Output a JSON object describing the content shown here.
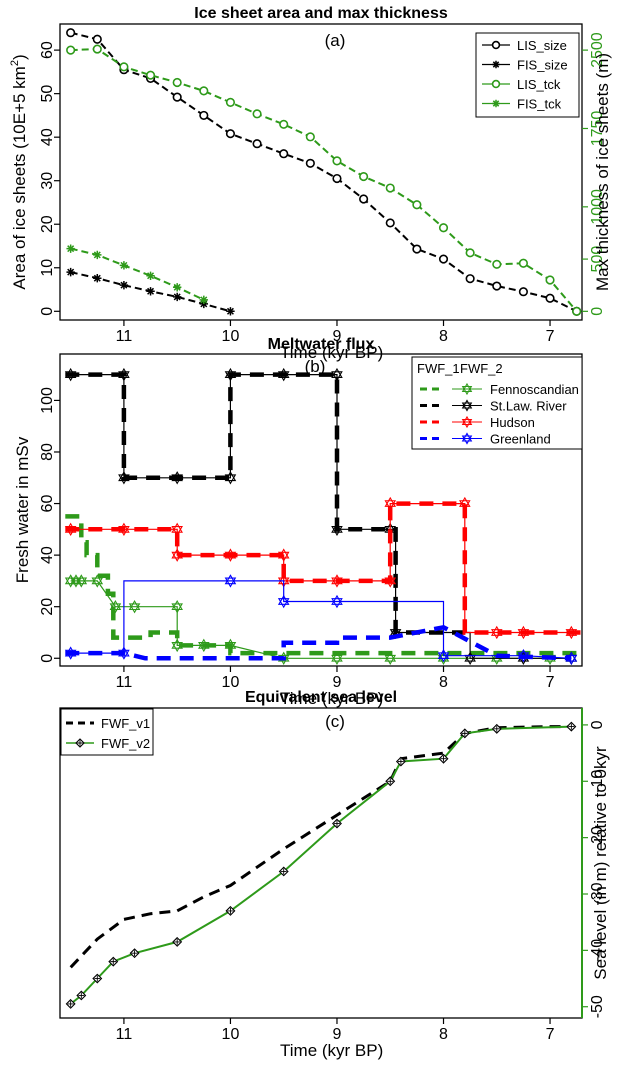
{
  "chart_data": [
    {
      "type": "line",
      "title": "Ice sheet area and max thickness",
      "panel_label": "(a)",
      "xlabel": "Time (kyr BP)",
      "ylabel": "Area of ice sheets (10E+5 km",
      "ylabel_sup": "2",
      "ylabel_close": ")",
      "y2label": "Max thickness of ice sheets (m)",
      "xlim": [
        11.6,
        6.7
      ],
      "ylim": [
        -2,
        66
      ],
      "y2lim": [
        -83,
        2750
      ],
      "xticks": [
        11,
        10,
        9,
        8,
        7
      ],
      "yticks": [
        0,
        10,
        20,
        30,
        40,
        50,
        60
      ],
      "y2ticks": [
        0,
        500,
        1000,
        1750,
        2500
      ],
      "grid": false,
      "legend_position": "top-right",
      "colors": {
        "size": "#000000",
        "tck": "#2e9a1a"
      },
      "series": [
        {
          "name": "LIS_size",
          "axis": "left",
          "marker": "circle",
          "color": "#000000",
          "x": [
            11.5,
            11.25,
            11.0,
            10.75,
            10.5,
            10.25,
            10.0,
            9.75,
            9.5,
            9.25,
            9.0,
            8.75,
            8.5,
            8.25,
            8.0,
            7.75,
            7.5,
            7.25,
            7.0,
            6.75
          ],
          "y": [
            64,
            62.5,
            55.5,
            53.5,
            49.2,
            45,
            40.8,
            38.5,
            36.2,
            34,
            30.5,
            25.8,
            20.3,
            14.3,
            12,
            7.5,
            5.8,
            4.5,
            3,
            0
          ]
        },
        {
          "name": "FIS_size",
          "axis": "left",
          "marker": "star",
          "color": "#000000",
          "x": [
            11.5,
            11.25,
            11.0,
            10.75,
            10.5,
            10.25,
            10.0
          ],
          "y": [
            9,
            7.6,
            6,
            4.6,
            3.3,
            1.7,
            0
          ]
        },
        {
          "name": "LIS_tck",
          "axis": "right",
          "marker": "circle",
          "color": "#2e9a1a",
          "x": [
            11.5,
            11.25,
            11.0,
            10.75,
            10.5,
            10.25,
            10.0,
            9.75,
            9.5,
            9.25,
            9.0,
            8.75,
            8.5,
            8.25,
            8.0,
            7.75,
            7.5,
            7.25,
            7.0,
            6.75
          ],
          "y": [
            2500,
            2510,
            2340,
            2260,
            2190,
            2110,
            2000,
            1890,
            1790,
            1670,
            1440,
            1290,
            1180,
            1020,
            800,
            560,
            450,
            460,
            300,
            0
          ]
        },
        {
          "name": "FIS_tck",
          "axis": "right",
          "marker": "star",
          "color": "#2e9a1a",
          "x": [
            11.5,
            11.25,
            11.0,
            10.75,
            10.5,
            10.25
          ],
          "y": [
            600,
            540,
            440,
            340,
            230,
            110
          ]
        }
      ]
    },
    {
      "type": "line",
      "title": "Meltwater flux",
      "panel_label": "(b)",
      "xlabel": "Time (kyr BP)",
      "ylabel": "Fresh water in mSv",
      "xlim": [
        11.6,
        6.7
      ],
      "ylim": [
        -3,
        118
      ],
      "xticks": [
        11,
        10,
        9,
        8,
        7
      ],
      "yticks": [
        0,
        20,
        40,
        60,
        80,
        100
      ],
      "grid": false,
      "legend_position": "top-right",
      "legend_header": [
        "FWF_1",
        "FWF_2"
      ],
      "series": [
        {
          "name": "Fennoscandian",
          "color": "#2e9a1a",
          "fwf1": {
            "x": [
              11.55,
              11.4,
              11.4,
              11.35,
              11.35,
              11.25,
              11.25,
              11.15,
              11.15,
              11.1,
              11.1,
              10.75,
              10.75,
              10.5,
              10.5,
              10.0,
              10.0,
              6.7
            ],
            "y": [
              55,
              55,
              45,
              45,
              40,
              40,
              32,
              32,
              25,
              25,
              8,
              8,
              10,
              10,
              5,
              5,
              2,
              2
            ]
          },
          "fwf2": {
            "x": [
              11.5,
              11.45,
              11.4,
              11.25,
              11.25,
              11.08,
              10.9,
              10.5,
              10.5,
              10.25,
              10.0,
              9.5,
              9.0,
              8.5,
              8.0,
              7.5,
              7.0,
              6.8
            ],
            "y": [
              30,
              30,
              30,
              30,
              30,
              20,
              20,
              20,
              5,
              5,
              5,
              0,
              0,
              0,
              0,
              0,
              0,
              0
            ],
            "marker_x": [
              11.5,
              11.45,
              11.4,
              11.25,
              11.08,
              10.9,
              10.5,
              10.5,
              10.25,
              10.0,
              9.5,
              9.0,
              8.5,
              8.0,
              7.5,
              7.0,
              6.8
            ],
            "marker_y": [
              30,
              30,
              30,
              30,
              20,
              20,
              20,
              5,
              5,
              5,
              0,
              0,
              0,
              0,
              0,
              0,
              0
            ]
          }
        },
        {
          "name": "St.Law. River",
          "color": "#000000",
          "fwf1": {
            "x": [
              11.55,
              11.0,
              11.0,
              10.0,
              10.0,
              9.0,
              9.0,
              8.45,
              8.45,
              8.0,
              8.0,
              7.8
            ],
            "y": [
              110,
              110,
              70,
              70,
              110,
              110,
              50,
              50,
              10,
              10,
              10,
              10
            ]
          },
          "fwf2": {
            "x": [
              11.5,
              11.25,
              11.0,
              11.0,
              10.5,
              10.0,
              10.0,
              9.5,
              9.25,
              9.0,
              9.0,
              8.5,
              8.45,
              8.45,
              7.75,
              7.75,
              6.8
            ],
            "y": [
              110,
              110,
              110,
              70,
              70,
              70,
              110,
              110,
              110,
              110,
              50,
              50,
              50,
              10,
              10,
              0,
              0
            ],
            "marker_x": [
              11.5,
              11.0,
              11.0,
              10.5,
              10.0,
              10.0,
              9.5,
              9.0,
              9.0,
              8.5,
              8.45,
              7.75,
              7.25,
              6.8
            ],
            "marker_y": [
              110,
              110,
              70,
              70,
              70,
              110,
              110,
              110,
              50,
              50,
              10,
              0,
              0,
              0
            ]
          }
        },
        {
          "name": "Hudson",
          "color": "#ff0000",
          "fwf1": {
            "x": [
              11.55,
              10.5,
              10.5,
              9.5,
              9.5,
              8.5,
              8.5,
              7.8,
              7.8,
              6.7
            ],
            "y": [
              50,
              50,
              40,
              40,
              30,
              30,
              60,
              60,
              10,
              10
            ]
          },
          "fwf2": {
            "x": [
              11.5,
              11.25,
              11.0,
              10.75,
              10.5,
              10.5,
              10.25,
              10.0,
              9.5,
              9.5,
              9.25,
              9.0,
              8.75,
              8.5,
              8.5,
              7.8,
              7.8,
              7.5,
              7.25,
              7.0,
              6.8
            ],
            "y": [
              50,
              50,
              50,
              50,
              50,
              40,
              40,
              40,
              40,
              30,
              30,
              30,
              30,
              30,
              60,
              60,
              10,
              10,
              10,
              10,
              10
            ],
            "marker_x": [
              11.5,
              11.0,
              10.5,
              10.5,
              10.0,
              9.5,
              9.5,
              9.0,
              8.5,
              8.5,
              7.8,
              7.5,
              7.25,
              6.8
            ],
            "marker_y": [
              50,
              50,
              50,
              40,
              40,
              40,
              30,
              30,
              30,
              60,
              60,
              10,
              10,
              10
            ]
          }
        },
        {
          "name": "Greenland",
          "color": "#0000ff",
          "fwf1": {
            "x": [
              11.55,
              11.0,
              10.8,
              10.25,
              10.0,
              9.5,
              9.5,
              9.0,
              9.0,
              8.5,
              8.0,
              7.5,
              6.8
            ],
            "y": [
              2,
              2,
              0,
              0,
              0,
              0,
              6,
              6,
              8,
              8,
              12,
              1,
              0
            ]
          },
          "fwf2": {
            "x": [
              11.5,
              11.0,
              11.0,
              10.0,
              9.5,
              9.5,
              8.0,
              8.0,
              7.25,
              6.8
            ],
            "y": [
              2,
              2,
              30,
              30,
              30,
              22,
              22,
              1,
              1,
              0
            ],
            "marker_x": [
              11.5,
              11.0,
              10.0,
              9.5,
              9.0,
              8.0,
              7.25,
              6.8
            ],
            "marker_y": [
              2,
              2,
              30,
              22,
              22,
              1,
              1,
              0
            ]
          }
        }
      ]
    },
    {
      "type": "line",
      "title": "Equivalent sea level",
      "panel_label": "(c)",
      "xlabel": "Time (kyr BP)",
      "y2label": "Sea level (in m) relative to 0kyr",
      "xlim": [
        11.6,
        6.7
      ],
      "ylim": [
        -52,
        3
      ],
      "xticks": [
        11,
        10,
        9,
        8,
        7
      ],
      "y2ticks": [
        0,
        -10,
        -20,
        -30,
        -40,
        -50
      ],
      "grid": false,
      "legend_position": "top-left",
      "series": [
        {
          "name": "FWF_v1",
          "color": "#000000",
          "style": "dashed",
          "x": [
            11.5,
            11.25,
            11.0,
            10.75,
            10.5,
            10.25,
            10.0,
            9.5,
            9.0,
            8.5,
            8.4,
            8.0,
            7.8,
            7.5,
            7.0,
            6.8
          ],
          "y": [
            -43,
            -38,
            -34.5,
            -33.5,
            -33,
            -30.5,
            -28.5,
            -22,
            -16,
            -10,
            -6,
            -5,
            -1.5,
            -0.5,
            -0.3,
            -0.3
          ]
        },
        {
          "name": "FWF_v2",
          "color": "#2e9a1a",
          "marker": "diamond",
          "x": [
            11.5,
            11.4,
            11.25,
            11.1,
            10.9,
            10.5,
            10.0,
            9.5,
            9.0,
            8.5,
            8.4,
            8.0,
            7.8,
            7.5,
            6.8
          ],
          "y": [
            -49.5,
            -48,
            -45,
            -42,
            -40.5,
            -38.5,
            -33,
            -26,
            -17.5,
            -10,
            -6.5,
            -6,
            -1.5,
            -0.7,
            -0.3
          ]
        }
      ]
    }
  ]
}
